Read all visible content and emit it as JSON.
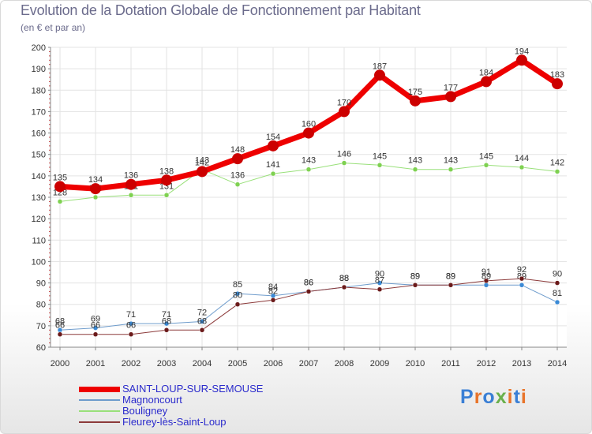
{
  "page": {
    "title": "Evolution de la Dotation Globale de Fonctionnement par Habitant",
    "subtitle": "(en € et par an)"
  },
  "logo": {
    "text": "Proxiti",
    "letter_colors": [
      "#3a7fd5",
      "#e8742a",
      "#3a7fd5",
      "#6ab04c",
      "#e8742a",
      "#3a7fd5",
      "#e8742a"
    ]
  },
  "chart_data": {
    "type": "line",
    "title": "Evolution de la Dotation Globale de Fonctionnement par Habitant",
    "subtitle": "(en € et par an)",
    "xlabel": "",
    "ylabel": "",
    "x": [
      "2000",
      "2001",
      "2002",
      "2003",
      "2004",
      "2005",
      "2006",
      "2007",
      "2008",
      "2009",
      "2010",
      "2011",
      "2012",
      "2013",
      "2014"
    ],
    "ylim": [
      60,
      200
    ],
    "yticks": [
      60,
      70,
      80,
      90,
      100,
      110,
      120,
      130,
      140,
      150,
      160,
      170,
      180,
      190,
      200
    ],
    "grid": true,
    "legend_position": "bottom-left",
    "series": [
      {
        "name": "SAINT-LOUP-SUR-SEMOUSE",
        "color": "#ee0000",
        "marker": "#cc0000",
        "values": [
          135,
          134,
          136,
          138,
          142,
          148,
          154,
          160,
          170,
          187,
          175,
          177,
          184,
          194,
          183
        ]
      },
      {
        "name": "Magnoncourt",
        "color": "#6e9ccc",
        "marker": "#3a8ad6",
        "values": [
          68,
          69,
          71,
          71,
          72,
          85,
          84,
          86,
          88,
          90,
          89,
          89,
          89,
          89,
          81
        ]
      },
      {
        "name": "Bouligney",
        "color": "#99e07a",
        "marker": "#7ed150",
        "values": [
          128,
          130,
          131,
          131,
          143,
          136,
          141,
          143,
          146,
          145,
          143,
          143,
          145,
          144,
          142
        ]
      },
      {
        "name": "Fleurey-lès-Saint-Loup",
        "color": "#8c3a3a",
        "marker": "#6b1a1a",
        "values": [
          66,
          66,
          66,
          68,
          68,
          80,
          82,
          86,
          88,
          87,
          89,
          89,
          91,
          92,
          90
        ]
      }
    ]
  }
}
